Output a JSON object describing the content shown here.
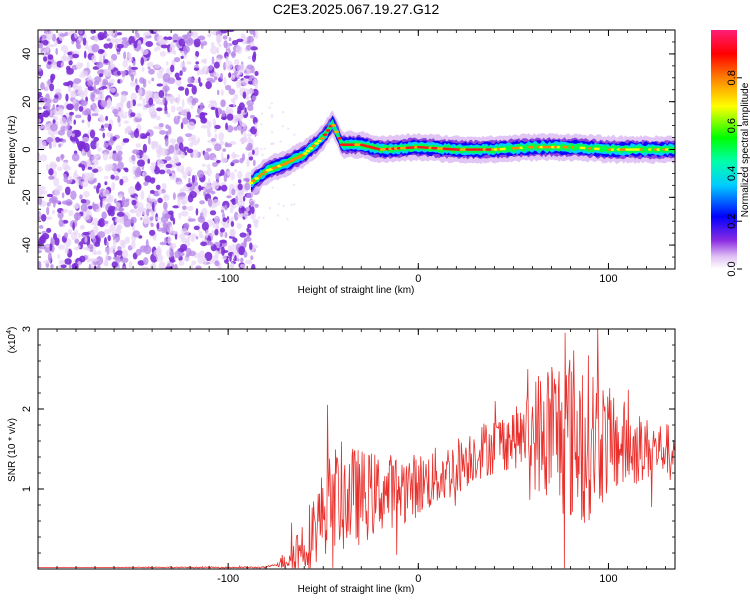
{
  "title": "C2E3.2025.067.19.27.G12",
  "chart_data": [
    {
      "type": "heatmap",
      "title": "C2E3.2025.067.19.27.G12",
      "xlabel": "Height of straight line (km)",
      "ylabel": "Frequency (Hz)",
      "xlim": [
        -200,
        135
      ],
      "ylim": [
        -50,
        50
      ],
      "xticks": [
        -100,
        0,
        100
      ],
      "yticks": [
        -40,
        -20,
        0,
        20,
        40
      ],
      "colorbar": {
        "label": "Normalized spectral amplitude",
        "range": [
          0,
          1
        ],
        "ticks": [
          "0.0",
          "0.2",
          "0.4",
          "0.6",
          "0.8"
        ],
        "tick_values": [
          0,
          0.2,
          0.4,
          0.6,
          0.8
        ],
        "colormap": "rainbow",
        "colors": [
          "#ffffff",
          "#cc88ee",
          "#7f00ff",
          "#0000ff",
          "#00ffff",
          "#00ff00",
          "#ffff00",
          "#ff8000",
          "#ff0000",
          "#ff0077"
        ]
      },
      "noise_region": {
        "x_range": [
          -200,
          -85
        ],
        "color": "#7b2ed6"
      },
      "ridge": [
        {
          "x": -88,
          "y": -14
        },
        {
          "x": -80,
          "y": -9
        },
        {
          "x": -70,
          "y": -6
        },
        {
          "x": -60,
          "y": -2
        },
        {
          "x": -50,
          "y": 5
        },
        {
          "x": -45,
          "y": 11
        },
        {
          "x": -40,
          "y": 2
        },
        {
          "x": -30,
          "y": 2
        },
        {
          "x": -20,
          "y": 0
        },
        {
          "x": 0,
          "y": 1
        },
        {
          "x": 20,
          "y": 0
        },
        {
          "x": 40,
          "y": 0
        },
        {
          "x": 60,
          "y": 1
        },
        {
          "x": 80,
          "y": 1
        },
        {
          "x": 100,
          "y": 0
        },
        {
          "x": 120,
          "y": 0
        },
        {
          "x": 135,
          "y": 0
        }
      ]
    },
    {
      "type": "line",
      "xlabel": "Height of straight line (km)",
      "ylabel": "SNR (10 * v/v)",
      "ymultiplier": "(x10",
      "ymultiplier_exp": "4",
      "ymultiplier_close": ")",
      "xlim": [
        -200,
        135
      ],
      "ylim": [
        0,
        3
      ],
      "xticks": [
        -100,
        0,
        100
      ],
      "yticks": [
        1,
        2,
        3
      ],
      "series": [
        {
          "color": "#e8302c",
          "envelope": [
            {
              "x": -200,
              "y": 0.02
            },
            {
              "x": -80,
              "y": 0.02
            },
            {
              "x": -72,
              "y": 0.08
            },
            {
              "x": -60,
              "y": 0.3
            },
            {
              "x": -45,
              "y": 0.9
            },
            {
              "x": -30,
              "y": 0.9
            },
            {
              "x": -20,
              "y": 0.95
            },
            {
              "x": -10,
              "y": 1.0
            },
            {
              "x": 0,
              "y": 1.05
            },
            {
              "x": 15,
              "y": 1.2
            },
            {
              "x": 30,
              "y": 1.45
            },
            {
              "x": 45,
              "y": 1.6
            },
            {
              "x": 60,
              "y": 1.7
            },
            {
              "x": 75,
              "y": 1.7
            },
            {
              "x": 90,
              "y": 1.65
            },
            {
              "x": 105,
              "y": 1.55
            },
            {
              "x": 120,
              "y": 1.5
            },
            {
              "x": 135,
              "y": 1.5
            }
          ],
          "noise_amplitude": [
            {
              "x": -200,
              "y": 0.0
            },
            {
              "x": -75,
              "y": 0.01
            },
            {
              "x": -60,
              "y": 0.4
            },
            {
              "x": -40,
              "y": 0.7
            },
            {
              "x": -20,
              "y": 0.5
            },
            {
              "x": 0,
              "y": 0.4
            },
            {
              "x": 30,
              "y": 0.35
            },
            {
              "x": 55,
              "y": 0.4
            },
            {
              "x": 65,
              "y": 0.9
            },
            {
              "x": 85,
              "y": 1.2
            },
            {
              "x": 100,
              "y": 0.7
            },
            {
              "x": 120,
              "y": 0.4
            },
            {
              "x": 135,
              "y": 0.3
            }
          ]
        }
      ]
    }
  ]
}
